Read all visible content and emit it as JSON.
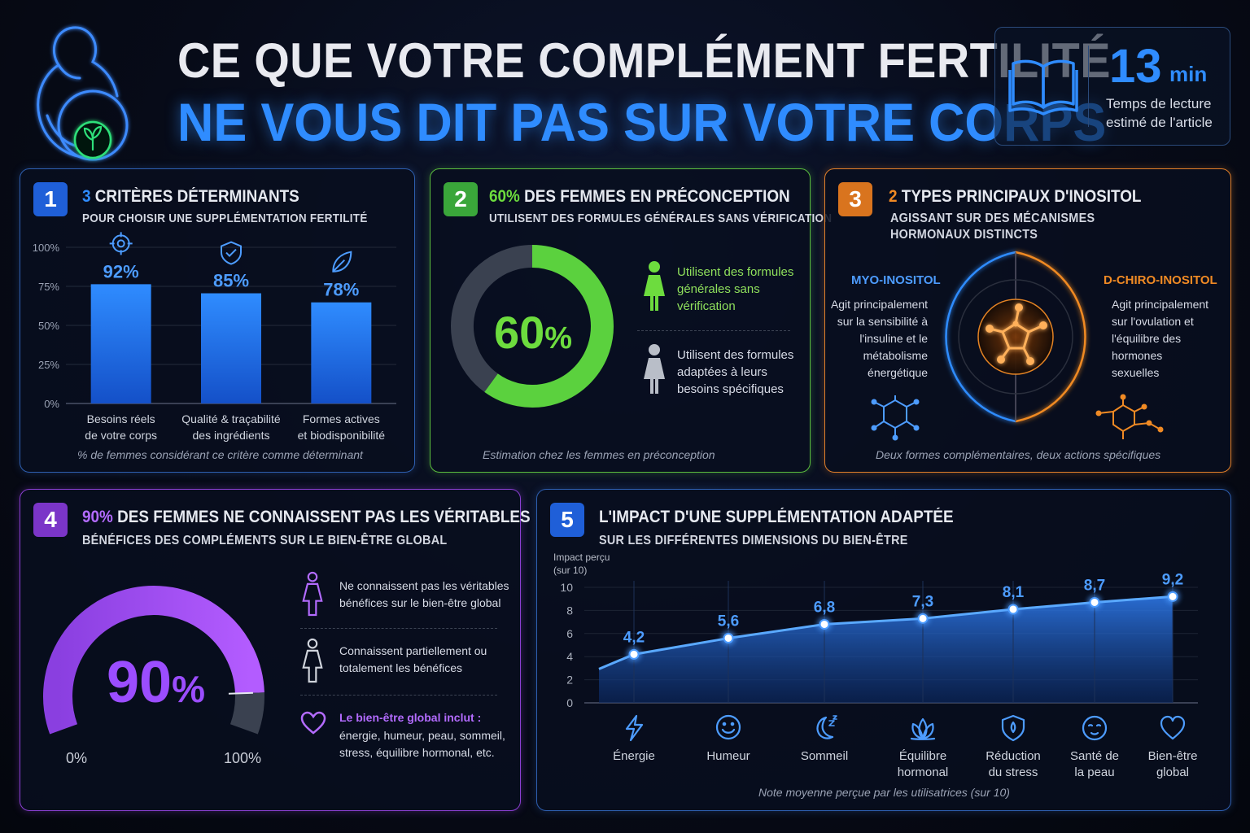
{
  "header": {
    "title_line1": "CE QUE VOTRE COMPLÉMENT FERTILITÉ",
    "title_line2": "NE VOUS DIT PAS SUR VOTRE CORPS",
    "reading_time_value": "13",
    "reading_time_unit": "min",
    "reading_time_caption": "Temps de lecture estimé de l'article"
  },
  "panel1": {
    "number": "1",
    "title_highlight": "3",
    "title_rest": "CRITÈRES DÉTERMINANTS",
    "subtitle": "POUR CHOISIR UNE SUPPLÉMENTATION FERTILITÉ",
    "note": "% de femmes considérant ce critère comme déterminant",
    "bar_icons": [
      "target-icon",
      "shield-check-icon",
      "leaf-icon"
    ]
  },
  "panel2": {
    "number": "2",
    "title_highlight": "60%",
    "title_rest": "DES FEMMES EN PRÉCONCEPTION",
    "subtitle": "UTILISENT DES FORMULES GÉNÉRALES SANS VÉRIFICATION",
    "center_value": "60",
    "center_unit": "%",
    "legend_generic": "Utilisent des formules générales sans vérification",
    "legend_adapted": "Utilisent des formules adaptées à leurs besoins spécifiques",
    "note": "Estimation chez les femmes en préconception"
  },
  "panel3": {
    "number": "3",
    "title_highlight": "2",
    "title_rest": "TYPES PRINCIPAUX D'INOSITOL",
    "subtitle_line1": "AGISSANT SUR DES MÉCANISMES",
    "subtitle_line2": "HORMONAUX DISTINCTS",
    "myo_label": "MYO-INOSITOL",
    "myo_text": "Agit principalement sur la sensibilité à l'insuline et le métabolisme énergétique",
    "dchiro_label": "D-CHIRO-INOSITOL",
    "dchiro_text": "Agit principalement sur l'ovulation et l'équilibre des hormones sexuelles",
    "note": "Deux formes complémentaires, deux actions spécifiques"
  },
  "panel4": {
    "number": "4",
    "title_highlight": "90%",
    "title_rest": "DES FEMMES NE CONNAISSENT PAS LES VÉRITABLES",
    "subtitle": "BÉNÉFICES DES COMPLÉMENTS SUR LE BIEN-ÊTRE GLOBAL",
    "gauge_value": "90",
    "gauge_unit": "%",
    "gauge_min": "0%",
    "gauge_max": "100%",
    "legend_unknown": "Ne connaissent pas les véritables bénéfices sur le bien-être global",
    "legend_known": "Connaissent partiellement ou totalement les bénéfices",
    "wellbeing_title": "Le bien-être global inclut :",
    "wellbeing_text": "énergie, humeur, peau, sommeil, stress, équilibre hormonal, etc."
  },
  "panel5": {
    "number": "5",
    "title": "L'IMPACT D'UNE SUPPLÉMENTATION ADAPTÉE",
    "subtitle": "SUR LES DIFFÉRENTES DIMENSIONS DU BIEN-ÊTRE",
    "ylabel_line1": "Impact perçu",
    "ylabel_line2": "(sur 10)",
    "note": "Note moyenne perçue par les utilisatrices (sur 10)",
    "category_icons": [
      "lightning-icon",
      "smiley-icon",
      "moon-icon",
      "lotus-icon",
      "shield-icon",
      "face-icon",
      "heart-icon"
    ]
  },
  "colors": {
    "blue": "#2f8cff",
    "green": "#5bd13e",
    "orange": "#f08a24",
    "purple": "#9b4dff",
    "gray": "#3a4150"
  },
  "chart_data": [
    {
      "type": "bar",
      "categories": [
        "Besoins réels de votre corps",
        "Qualité & traçabilité des ingrédients",
        "Formes actives et biodisponibilité"
      ],
      "values": [
        92,
        85,
        78
      ],
      "value_labels": [
        "92%",
        "85%",
        "78%"
      ],
      "yticks": [
        "100%",
        "75%",
        "50%",
        "25%",
        "0%"
      ],
      "ylim": [
        0,
        100
      ]
    },
    {
      "type": "pie",
      "categories": [
        "Utilisent des formules générales sans vérification",
        "Utilisent des formules adaptées à leurs besoins spécifiques"
      ],
      "values": [
        60,
        40
      ]
    },
    {
      "type": "pie",
      "categories": [
        "Ne connaissent pas les véritables bénéfices sur le bien-être global",
        "Connaissent partiellement ou totalement les bénéfices"
      ],
      "values": [
        90,
        10
      ]
    },
    {
      "type": "area",
      "categories": [
        "Énergie",
        "Humeur",
        "Sommeil",
        "Équilibre hormonal",
        "Réduction du stress",
        "Santé de la peau",
        "Bien-être global"
      ],
      "values": [
        4.2,
        5.6,
        6.8,
        7.3,
        8.1,
        8.7,
        9.2
      ],
      "value_labels": [
        "4,2",
        "5,6",
        "6,8",
        "7,3",
        "8,1",
        "8,7",
        "9,2"
      ],
      "yticks": [
        "10",
        "8",
        "6",
        "4",
        "2",
        "0"
      ],
      "ylim": [
        0,
        10
      ]
    }
  ]
}
